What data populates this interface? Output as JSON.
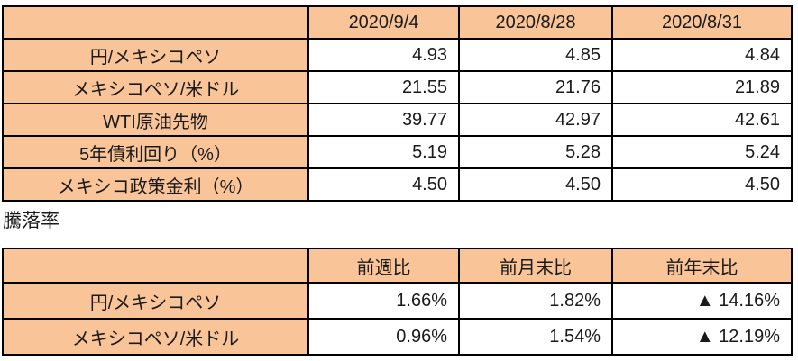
{
  "colors": {
    "header_bg": "#FAC499",
    "border": "#000000",
    "text": "#1a1a1a"
  },
  "section_label": "騰落率",
  "negative_marker": "▲",
  "rates_table": {
    "corner": "",
    "columns": [
      "2020/9/4",
      "2020/8/28",
      "2020/8/31"
    ],
    "rows": [
      {
        "label": "円/メキシコペソ",
        "values": [
          "4.93",
          "4.85",
          "4.84"
        ]
      },
      {
        "label": "メキシコペソ/米ドル",
        "values": [
          "21.55",
          "21.76",
          "21.89"
        ]
      },
      {
        "label": "WTI原油先物",
        "values": [
          "39.77",
          "42.97",
          "42.61"
        ]
      },
      {
        "label": "5年債利回り（%）",
        "values": [
          "5.19",
          "5.28",
          "5.24"
        ]
      },
      {
        "label": "メキシコ政策金利（%）",
        "values": [
          "4.50",
          "4.50",
          "4.50"
        ]
      }
    ]
  },
  "change_table": {
    "corner": "",
    "columns": [
      "前週比",
      "前月末比",
      "前年末比"
    ],
    "rows": [
      {
        "label": "円/メキシコペソ",
        "values": [
          "1.66%",
          "1.82%",
          "▲ 14.16%"
        ]
      },
      {
        "label": "メキシコペソ/米ドル",
        "values": [
          "0.96%",
          "1.54%",
          "▲ 12.19%"
        ]
      }
    ]
  }
}
